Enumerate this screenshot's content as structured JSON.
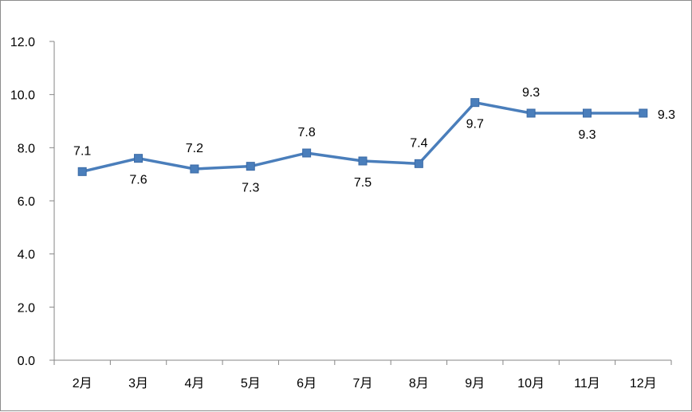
{
  "chart_data": {
    "type": "line",
    "title": "",
    "xlabel": "",
    "ylabel": "",
    "categories": [
      "2月",
      "3月",
      "4月",
      "5月",
      "6月",
      "7月",
      "8月",
      "9月",
      "10月",
      "11月",
      "12月"
    ],
    "series": [
      {
        "values": [
          7.1,
          7.6,
          7.2,
          7.3,
          7.8,
          7.5,
          7.4,
          9.7,
          9.3,
          9.3,
          9.3
        ],
        "data_labels": [
          "7.1",
          "7.6",
          "7.2",
          "7.3",
          "7.8",
          "7.5",
          "7.4",
          "9.7",
          "9.3",
          "9.3",
          "9.3"
        ],
        "label_positions": [
          "above",
          "below",
          "above",
          "below",
          "above",
          "below",
          "above",
          "below",
          "above",
          "below",
          "right"
        ],
        "color": "#4a7ebb",
        "marker": "square"
      }
    ],
    "ylim": [
      0,
      12
    ],
    "yticks": [
      "0.0",
      "2.0",
      "4.0",
      "6.0",
      "8.0",
      "10.0",
      "12.0"
    ],
    "grid": false,
    "legend": "none"
  }
}
